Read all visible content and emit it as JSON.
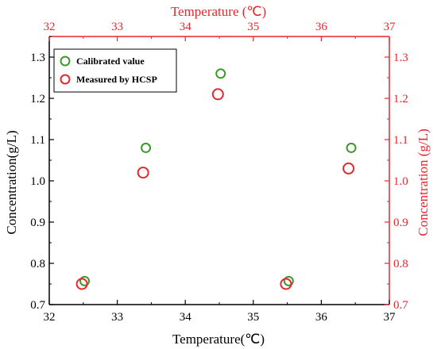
{
  "chart_data": {
    "type": "scatter",
    "x_label_bottom": "Temperature(℃)",
    "x_label_top": "Temperature (℃)",
    "y_label_left": "Concentration(g/L)",
    "y_label_right": "Concentration (g/L)",
    "xlim": [
      32,
      37
    ],
    "ylim": [
      0.7,
      1.35
    ],
    "x_ticks": [
      "32",
      "33",
      "34",
      "35",
      "36",
      "37"
    ],
    "y_ticks": [
      "0.7",
      "0.8",
      "0.9",
      "1.0",
      "1.1",
      "1.2",
      "1.3"
    ],
    "legend_position": "top-left",
    "grid": false,
    "series": [
      {
        "name": "Calibrated value",
        "color": "#3a9a2a",
        "x": [
          32.52,
          33.42,
          34.52,
          35.52,
          36.44
        ],
        "y": [
          0.757,
          1.08,
          1.26,
          0.757,
          1.08
        ]
      },
      {
        "name": "Measured by HCSP",
        "color": "#e8262d",
        "x": [
          32.48,
          33.38,
          34.48,
          35.48,
          36.4
        ],
        "y": [
          0.75,
          1.02,
          1.21,
          0.75,
          1.03
        ]
      }
    ],
    "colors": {
      "left_axis": "#000000",
      "right_axis": "#e8262d",
      "top_axis": "#e8262d",
      "bottom_axis": "#000000"
    }
  }
}
